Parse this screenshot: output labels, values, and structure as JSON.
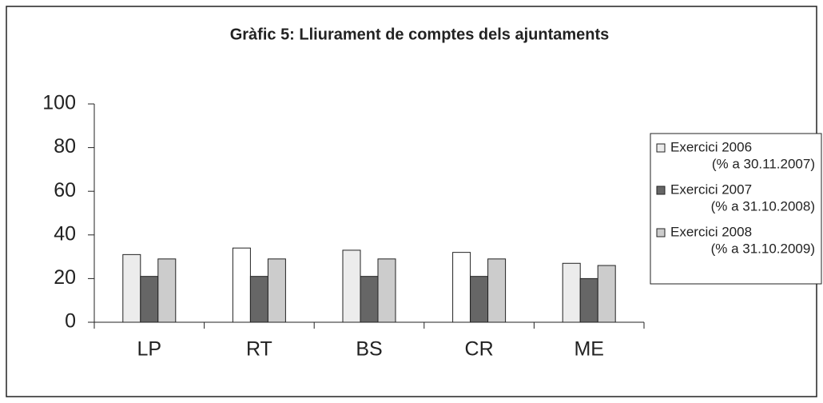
{
  "chart_data": {
    "type": "bar",
    "title": "Gràfic 5: Lliurament de comptes dels ajuntaments",
    "categories": [
      "LP",
      "RT",
      "BS",
      "CR",
      "ME"
    ],
    "series": [
      {
        "name": "Exercici 2006",
        "subname": "(% a 30.11.2007)",
        "color": "#ececec",
        "colors": [
          "#ececec",
          "#ffffff",
          "#ececec",
          "#ffffff",
          "#ececec"
        ],
        "values": [
          31,
          34,
          33,
          32,
          27
        ]
      },
      {
        "name": "Exercici 2007",
        "subname": "(% a 31.10.2008)",
        "color": "#666666",
        "values": [
          21,
          21,
          21,
          21,
          20
        ]
      },
      {
        "name": "Exercici 2008",
        "subname": "(% a 31.10.2009)",
        "color": "#cccccc",
        "values": [
          29,
          29,
          29,
          29,
          26
        ]
      }
    ],
    "ylim": [
      0,
      100
    ],
    "yticks": [
      0,
      20,
      40,
      60,
      80,
      100
    ],
    "grid": false,
    "legend": "right"
  }
}
